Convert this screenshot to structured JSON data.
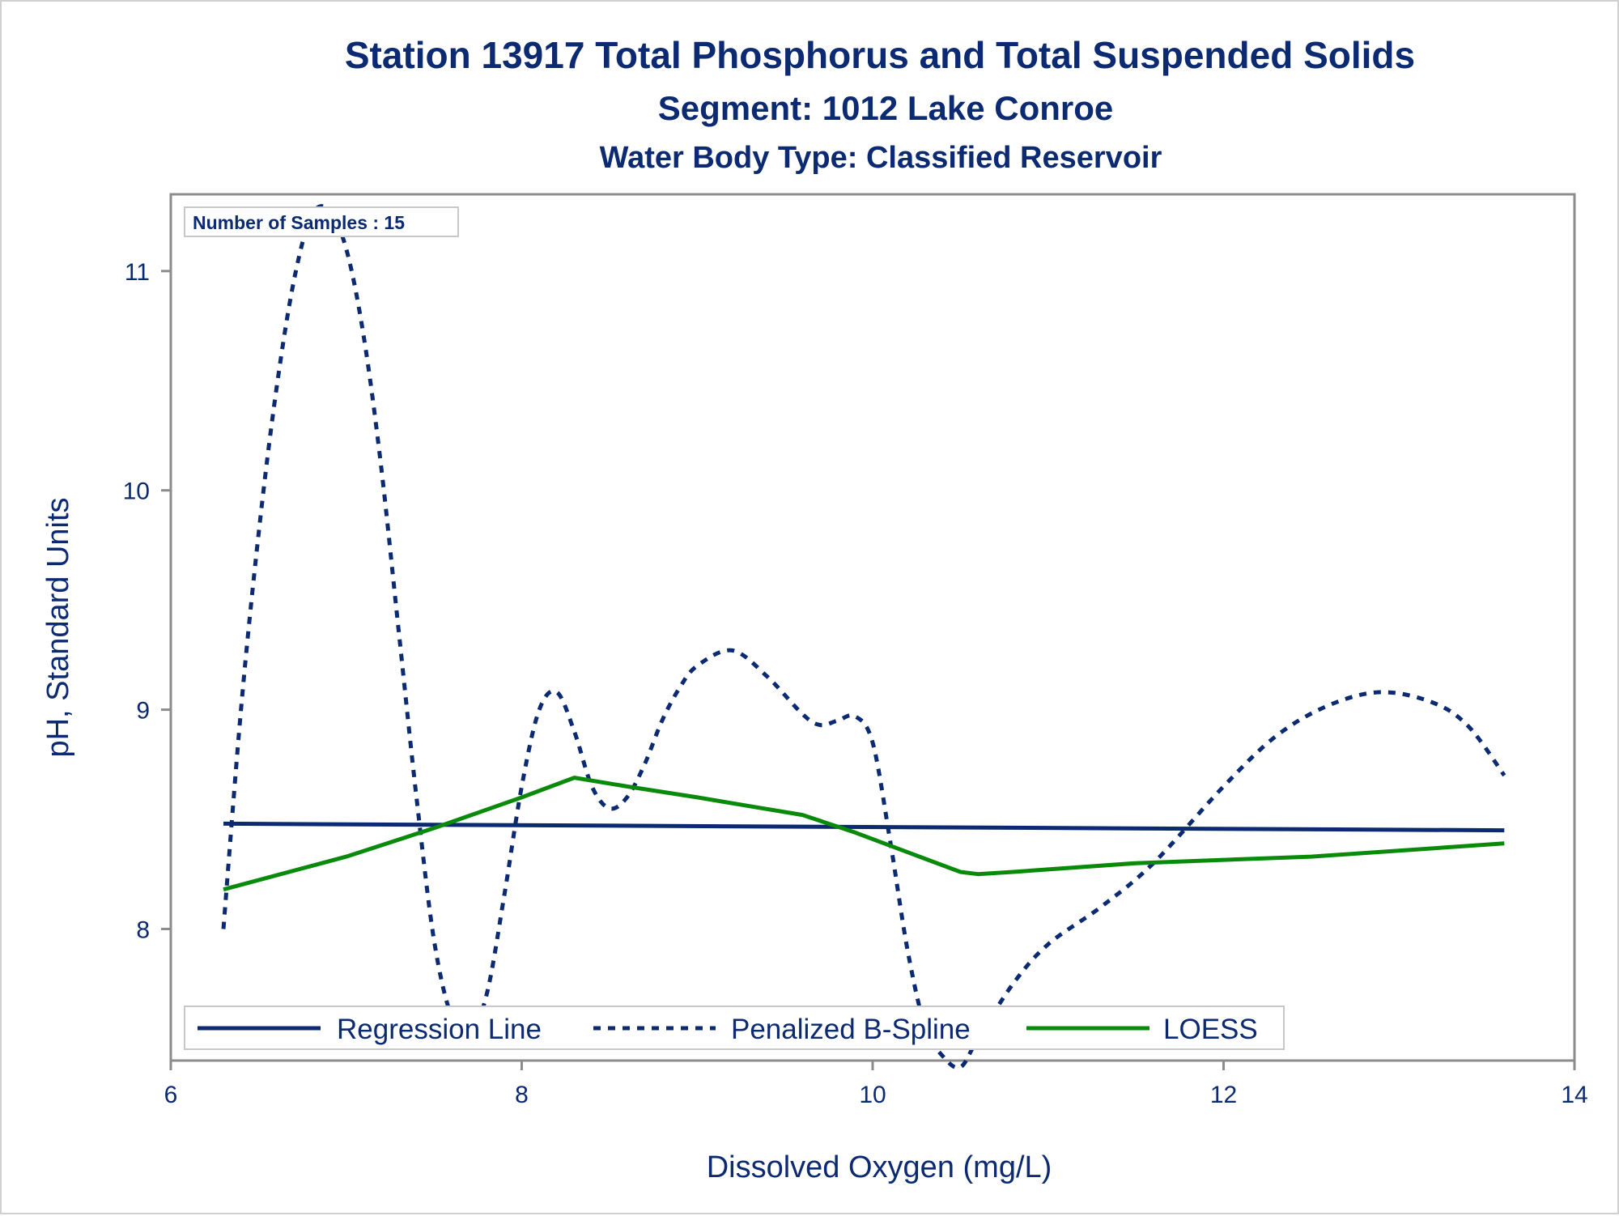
{
  "titles": {
    "line1": "Station 13917  Total Phosphorus and Total Suspended Solids",
    "line2": "Segment: 1012  Lake Conroe",
    "line3": "Water Body Type: Classified Reservoir"
  },
  "inset": {
    "text": "Number of Samples : 15"
  },
  "colors": {
    "text": "#0b2a72",
    "regression": "#0b2a72",
    "spline": "#0b2a72",
    "loess": "#0a8a0a",
    "frame": "#8c8c8c"
  },
  "chart_data": {
    "type": "line",
    "title": "Station 13917  Total Phosphorus and Total Suspended Solids",
    "subtitle": "Segment: 1012  Lake Conroe / Water Body Type: Classified Reservoir",
    "xlabel": "Dissolved Oxygen (mg/L)",
    "ylabel": "pH, Standard Units",
    "xlim": [
      6,
      14
    ],
    "ylim": [
      7.4,
      11.35
    ],
    "xticks": [
      6,
      8,
      10,
      12,
      14
    ],
    "xtick_labels": [
      "6",
      "8",
      "10",
      "12",
      "14"
    ],
    "yticks": [
      8,
      9,
      10,
      11
    ],
    "ytick_labels": [
      "8",
      "9",
      "10",
      "11"
    ],
    "grid": false,
    "legend_position": "bottom-inside",
    "series": [
      {
        "name": "Regression Line",
        "style": "solid",
        "x": [
          6.3,
          13.6
        ],
        "y": [
          8.48,
          8.45
        ]
      },
      {
        "name": "Penalized B-Spline",
        "style": "dashed",
        "x": [
          6.3,
          6.4,
          6.5,
          6.6,
          6.7,
          6.8,
          6.9,
          7.0,
          7.1,
          7.2,
          7.3,
          7.4,
          7.5,
          7.6,
          7.7,
          7.8,
          7.9,
          8.0,
          8.1,
          8.2,
          8.3,
          8.4,
          8.5,
          8.6,
          8.7,
          8.8,
          8.9,
          9.0,
          9.2,
          9.4,
          9.6,
          9.7,
          9.8,
          9.9,
          10.0,
          10.1,
          10.2,
          10.3,
          10.4,
          10.5,
          10.6,
          10.8,
          11.0,
          11.3,
          11.6,
          12.0,
          12.3,
          12.6,
          12.9,
          13.2,
          13.4,
          13.6
        ],
        "y": [
          8.0,
          9.0,
          9.8,
          10.45,
          10.95,
          11.25,
          11.28,
          11.1,
          10.7,
          10.1,
          9.35,
          8.6,
          7.95,
          7.6,
          7.52,
          7.7,
          8.15,
          8.65,
          9.0,
          9.08,
          8.9,
          8.65,
          8.55,
          8.6,
          8.75,
          8.95,
          9.1,
          9.2,
          9.27,
          9.15,
          8.98,
          8.93,
          8.95,
          8.97,
          8.85,
          8.4,
          7.9,
          7.55,
          7.42,
          7.37,
          7.5,
          7.75,
          7.93,
          8.1,
          8.3,
          8.65,
          8.88,
          9.02,
          9.08,
          9.03,
          8.92,
          8.7
        ]
      },
      {
        "name": "LOESS",
        "style": "solid",
        "x": [
          6.3,
          7.0,
          7.5,
          8.0,
          8.3,
          8.6,
          9.0,
          9.3,
          9.6,
          9.9,
          10.2,
          10.5,
          10.6,
          10.8,
          11.5,
          12.5,
          13.6
        ],
        "y": [
          8.18,
          8.33,
          8.46,
          8.6,
          8.69,
          8.65,
          8.6,
          8.56,
          8.52,
          8.44,
          8.35,
          8.26,
          8.25,
          8.26,
          8.3,
          8.33,
          8.39
        ]
      }
    ]
  }
}
